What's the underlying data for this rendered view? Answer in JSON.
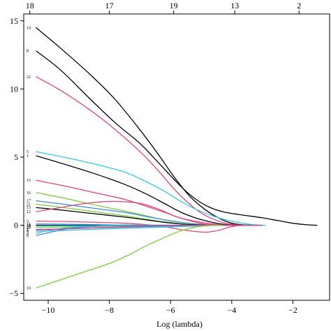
{
  "chart_data": {
    "type": "line",
    "title": "",
    "xlabel": "Log (lambda)",
    "ylabel": "",
    "xlim": [
      -10.8,
      -0.8
    ],
    "ylim": [
      -5.5,
      15.5
    ],
    "x_ticks": [
      -10,
      -8,
      -6,
      -4,
      -2
    ],
    "x_tick_labels": [
      "−10",
      "−8",
      "−6",
      "−4",
      "−2"
    ],
    "y_ticks": [
      -5,
      0,
      5,
      10,
      15
    ],
    "y_tick_labels": [
      "−5",
      "0",
      "5",
      "10",
      "15"
    ],
    "top_axis": {
      "ticks": [
        -10.6,
        -8.0,
        -5.9,
        -3.9,
        -1.8
      ],
      "labels": [
        "18",
        "17",
        "19",
        "13",
        "2"
      ]
    },
    "series": [
      {
        "name": "14",
        "color": "#000000",
        "points": [
          [
            -10.4,
            14.5
          ],
          [
            -9.6,
            13.0
          ],
          [
            -8.6,
            11.0
          ],
          [
            -7.8,
            9.2
          ],
          [
            -7.0,
            7.0
          ],
          [
            -6.4,
            5.2
          ],
          [
            -5.9,
            3.6
          ],
          [
            -5.4,
            2.2
          ],
          [
            -4.9,
            1.2
          ],
          [
            -4.4,
            0.5
          ],
          [
            -4.0,
            0.15
          ],
          [
            -3.6,
            0.03
          ],
          [
            -3.0,
            0
          ]
        ]
      },
      {
        "name": "8",
        "color": "#000000",
        "points": [
          [
            -10.4,
            12.8
          ],
          [
            -9.6,
            11.4
          ],
          [
            -8.6,
            9.2
          ],
          [
            -7.8,
            7.5
          ],
          [
            -7.0,
            6.0
          ],
          [
            -6.4,
            4.6
          ],
          [
            -5.9,
            3.4
          ],
          [
            -5.5,
            2.5
          ],
          [
            -5.1,
            1.8
          ],
          [
            -4.7,
            1.3
          ],
          [
            -4.3,
            1.0
          ],
          [
            -3.8,
            0.8
          ],
          [
            -3.0,
            0.55
          ],
          [
            -2.5,
            0.35
          ],
          [
            -2.0,
            0.15
          ],
          [
            -1.5,
            0.03
          ],
          [
            -1.2,
            0
          ]
        ]
      },
      {
        "name": "22",
        "color": "#e0457b",
        "points": [
          [
            -10.4,
            10.9
          ],
          [
            -9.6,
            9.9
          ],
          [
            -8.6,
            8.4
          ],
          [
            -7.8,
            7.0
          ],
          [
            -7.0,
            5.4
          ],
          [
            -6.4,
            4.0
          ],
          [
            -5.9,
            2.7
          ],
          [
            -5.4,
            1.6
          ],
          [
            -5.0,
            0.9
          ],
          [
            -4.6,
            0.45
          ],
          [
            -4.2,
            0.15
          ],
          [
            -3.8,
            0.03
          ],
          [
            -3.4,
            0
          ]
        ]
      },
      {
        "name": "5",
        "color": "#37c6e0",
        "points": [
          [
            -10.4,
            5.4
          ],
          [
            -9.5,
            5.0
          ],
          [
            -8.5,
            4.5
          ],
          [
            -7.5,
            3.9
          ],
          [
            -6.8,
            3.2
          ],
          [
            -6.2,
            2.5
          ],
          [
            -5.7,
            1.8
          ],
          [
            -5.2,
            1.2
          ],
          [
            -4.7,
            0.75
          ],
          [
            -4.2,
            0.4
          ],
          [
            -3.7,
            0.18
          ],
          [
            -3.3,
            0.05
          ],
          [
            -2.9,
            0
          ]
        ]
      },
      {
        "name": "1",
        "color": "#000000",
        "points": [
          [
            -10.4,
            5.1
          ],
          [
            -9.5,
            4.5
          ],
          [
            -8.5,
            3.8
          ],
          [
            -7.5,
            3.0
          ],
          [
            -6.8,
            2.3
          ],
          [
            -6.2,
            1.6
          ],
          [
            -5.7,
            1.0
          ],
          [
            -5.2,
            0.55
          ],
          [
            -4.7,
            0.25
          ],
          [
            -4.3,
            0.08
          ],
          [
            -3.9,
            0.01
          ],
          [
            -3.5,
            0
          ]
        ]
      },
      {
        "name": "15",
        "color": "#e0457b",
        "points": [
          [
            -10.4,
            3.3
          ],
          [
            -9.5,
            2.9
          ],
          [
            -8.5,
            2.4
          ],
          [
            -7.5,
            1.9
          ],
          [
            -6.8,
            1.4
          ],
          [
            -6.2,
            0.95
          ],
          [
            -5.7,
            0.55
          ],
          [
            -5.2,
            0.3
          ],
          [
            -4.7,
            0.12
          ],
          [
            -4.3,
            0.03
          ],
          [
            -3.9,
            0
          ]
        ]
      },
      {
        "name": "16",
        "color": "#7dcc3f",
        "points": [
          [
            -10.4,
            2.4
          ],
          [
            -9.5,
            2.0
          ],
          [
            -8.5,
            1.5
          ],
          [
            -7.5,
            1.05
          ],
          [
            -6.8,
            0.7
          ],
          [
            -6.2,
            0.4
          ],
          [
            -5.6,
            0.2
          ],
          [
            -5.0,
            0.07
          ],
          [
            -4.5,
            0.01
          ],
          [
            -4.1,
            0
          ]
        ]
      },
      {
        "name": "17",
        "color": "#3b8ed6",
        "points": [
          [
            -10.4,
            1.8
          ],
          [
            -9.5,
            1.55
          ],
          [
            -8.5,
            1.25
          ],
          [
            -7.5,
            0.95
          ],
          [
            -6.8,
            0.65
          ],
          [
            -6.2,
            0.4
          ],
          [
            -5.6,
            0.2
          ],
          [
            -5.0,
            0.07
          ],
          [
            -4.5,
            0.01
          ],
          [
            -4.1,
            0
          ]
        ]
      },
      {
        "name": "21",
        "color": "#7dcc3f",
        "points": [
          [
            -10.4,
            1.55
          ],
          [
            -9.5,
            1.3
          ],
          [
            -8.5,
            1.0
          ],
          [
            -7.5,
            0.7
          ],
          [
            -6.8,
            0.45
          ],
          [
            -6.2,
            0.25
          ],
          [
            -5.6,
            0.1
          ],
          [
            -5.0,
            0.02
          ],
          [
            -4.6,
            0
          ]
        ]
      },
      {
        "name": "13",
        "color": "#000000",
        "points": [
          [
            -10.4,
            1.3
          ],
          [
            -9.5,
            1.1
          ],
          [
            -8.5,
            0.85
          ],
          [
            -7.5,
            0.6
          ],
          [
            -6.8,
            0.4
          ],
          [
            -6.2,
            0.22
          ],
          [
            -5.6,
            0.09
          ],
          [
            -5.0,
            0.02
          ],
          [
            -4.6,
            0
          ]
        ]
      },
      {
        "name": "12",
        "color": "#e0457b",
        "points": [
          [
            -10.4,
            1.0
          ],
          [
            -9.6,
            1.3
          ],
          [
            -8.8,
            1.6
          ],
          [
            -8.0,
            1.75
          ],
          [
            -7.3,
            1.7
          ],
          [
            -6.8,
            1.5
          ],
          [
            -6.3,
            1.1
          ],
          [
            -5.9,
            0.7
          ],
          [
            -5.4,
            0.35
          ],
          [
            -4.9,
            0.1
          ],
          [
            -4.5,
            0.02
          ],
          [
            -4.1,
            0
          ]
        ]
      },
      {
        "name": "3",
        "color": "#e0457b",
        "points": [
          [
            -10.4,
            0.3
          ],
          [
            -9.5,
            0.28
          ],
          [
            -8.5,
            0.22
          ],
          [
            -7.5,
            0.15
          ],
          [
            -6.8,
            0.05
          ],
          [
            -6.2,
            -0.1
          ],
          [
            -5.7,
            -0.3
          ],
          [
            -5.2,
            -0.45
          ],
          [
            -4.8,
            -0.5
          ],
          [
            -4.4,
            -0.35
          ],
          [
            -4.1,
            -0.15
          ],
          [
            -3.8,
            -0.03
          ],
          [
            -3.5,
            0
          ]
        ]
      },
      {
        "name": "11",
        "color": "#3b8ed6",
        "points": [
          [
            -10.4,
            0.1
          ],
          [
            -9.5,
            0.08
          ],
          [
            -8.5,
            0.05
          ],
          [
            -7.5,
            0.02
          ],
          [
            -6.5,
            0
          ],
          [
            -3.0,
            0
          ]
        ]
      },
      {
        "name": "19",
        "color": "#000000",
        "points": [
          [
            -10.4,
            0.0
          ],
          [
            -8.0,
            0.0
          ],
          [
            -3.0,
            0
          ]
        ]
      },
      {
        "name": "18",
        "color": "#37c6e0",
        "points": [
          [
            -10.4,
            -0.05
          ],
          [
            -9.5,
            -0.04
          ],
          [
            -8.5,
            -0.03
          ],
          [
            -7.0,
            -0.01
          ],
          [
            -5.5,
            0
          ],
          [
            -3.0,
            0
          ]
        ]
      },
      {
        "name": "20",
        "color": "#7dcc3f",
        "points": [
          [
            -10.4,
            -0.15
          ],
          [
            -9.5,
            -0.12
          ],
          [
            -8.5,
            -0.08
          ],
          [
            -7.5,
            -0.04
          ],
          [
            -6.5,
            -0.01
          ],
          [
            -5.5,
            0
          ],
          [
            -3.0,
            0
          ]
        ]
      },
      {
        "name": "2",
        "color": "#3b8ed6",
        "points": [
          [
            -10.4,
            -0.3
          ],
          [
            -9.5,
            -0.26
          ],
          [
            -8.5,
            -0.2
          ],
          [
            -7.5,
            -0.14
          ],
          [
            -6.5,
            -0.08
          ],
          [
            -5.5,
            -0.03
          ],
          [
            -4.8,
            0
          ],
          [
            -3.0,
            0
          ]
        ]
      },
      {
        "name": "9",
        "color": "#37c6e0",
        "points": [
          [
            -10.4,
            -0.45
          ],
          [
            -9.5,
            -0.38
          ],
          [
            -8.5,
            -0.3
          ],
          [
            -7.5,
            -0.22
          ],
          [
            -6.5,
            -0.15
          ],
          [
            -5.5,
            -0.08
          ],
          [
            -4.7,
            -0.02
          ],
          [
            -4.3,
            0
          ]
        ]
      },
      {
        "name": "4",
        "color": "#37c6e0",
        "points": [
          [
            -10.4,
            -0.6
          ],
          [
            -9.8,
            -0.3
          ],
          [
            -9.0,
            -0.1
          ],
          [
            -8.2,
            0.0
          ],
          [
            -7.5,
            0.03
          ],
          [
            -6.5,
            0.02
          ],
          [
            -5.5,
            0.01
          ],
          [
            -4.5,
            0
          ]
        ]
      },
      {
        "name": "6",
        "color": "#3b8ed6",
        "points": [
          [
            -10.4,
            -0.75
          ],
          [
            -9.8,
            -0.45
          ],
          [
            -9.2,
            -0.2
          ],
          [
            -8.5,
            -0.08
          ],
          [
            -7.8,
            -0.02
          ],
          [
            -7.0,
            0
          ],
          [
            -3.0,
            0
          ]
        ]
      },
      {
        "name": "7",
        "color": "#e0457b",
        "points": [
          [
            -10.4,
            -0.35
          ],
          [
            -9.5,
            -0.28
          ],
          [
            -8.5,
            -0.18
          ],
          [
            -7.5,
            -0.1
          ],
          [
            -6.5,
            -0.04
          ],
          [
            -5.5,
            0
          ],
          [
            -3.0,
            0
          ]
        ]
      },
      {
        "name": "10",
        "color": "#7dcc3f",
        "points": [
          [
            -10.4,
            -4.6
          ],
          [
            -9.6,
            -4.0
          ],
          [
            -8.8,
            -3.4
          ],
          [
            -8.0,
            -2.8
          ],
          [
            -7.3,
            -2.1
          ],
          [
            -6.8,
            -1.5
          ],
          [
            -6.3,
            -1.0
          ],
          [
            -5.9,
            -0.6
          ],
          [
            -5.5,
            -0.3
          ],
          [
            -5.1,
            -0.1
          ],
          [
            -4.7,
            -0.02
          ],
          [
            -4.3,
            0
          ]
        ]
      }
    ]
  }
}
